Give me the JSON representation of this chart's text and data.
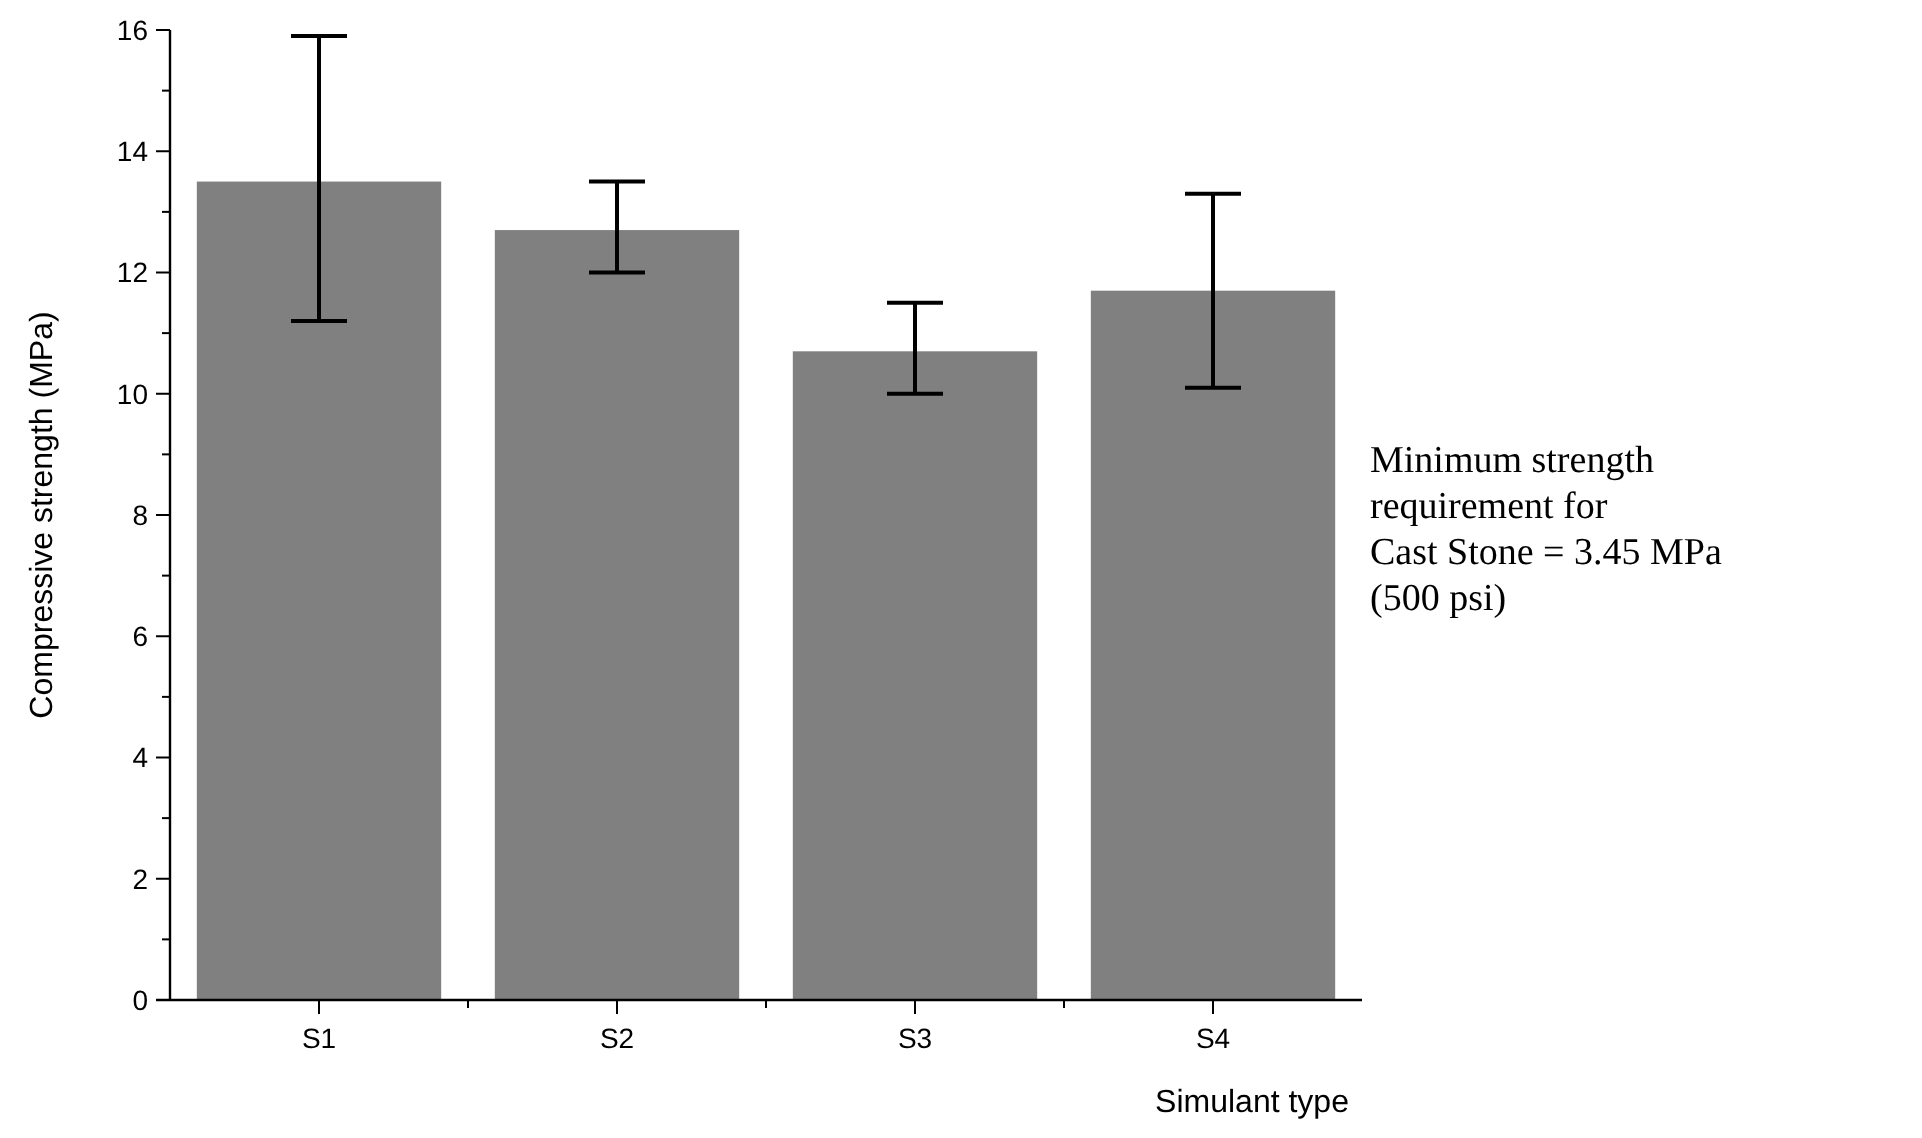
{
  "chart_data": {
    "type": "bar",
    "xlabel": "Simulant type",
    "ylabel": "Compressive strength (MPa)",
    "categories": [
      "S1",
      "S2",
      "S3",
      "S4"
    ],
    "values": [
      13.5,
      12.7,
      10.7,
      11.7
    ],
    "errors": [
      [
        11.2,
        15.9
      ],
      [
        12.0,
        13.5
      ],
      [
        10.0,
        11.5
      ],
      [
        10.1,
        13.3
      ]
    ],
    "color": "#808080",
    "ylim": [
      0,
      16
    ],
    "yticks": [
      0,
      {
        "value": 1,
        "label": null
      },
      2,
      {
        "value": 3,
        "label": null
      },
      4,
      {
        "value": 5,
        "label": null
      },
      6,
      {
        "value": 7,
        "label": null
      },
      8,
      {
        "value": 9,
        "label": null
      },
      10,
      {
        "value": 11,
        "label": null
      },
      12,
      {
        "value": 13,
        "label": null
      },
      14,
      {
        "value": 15,
        "label": null
      },
      16
    ],
    "annotations": [
      "Minimum strength\nrequirement for\nCast Stone = 3.45 MPa\n(500 psi)"
    ],
    "grid": false
  }
}
